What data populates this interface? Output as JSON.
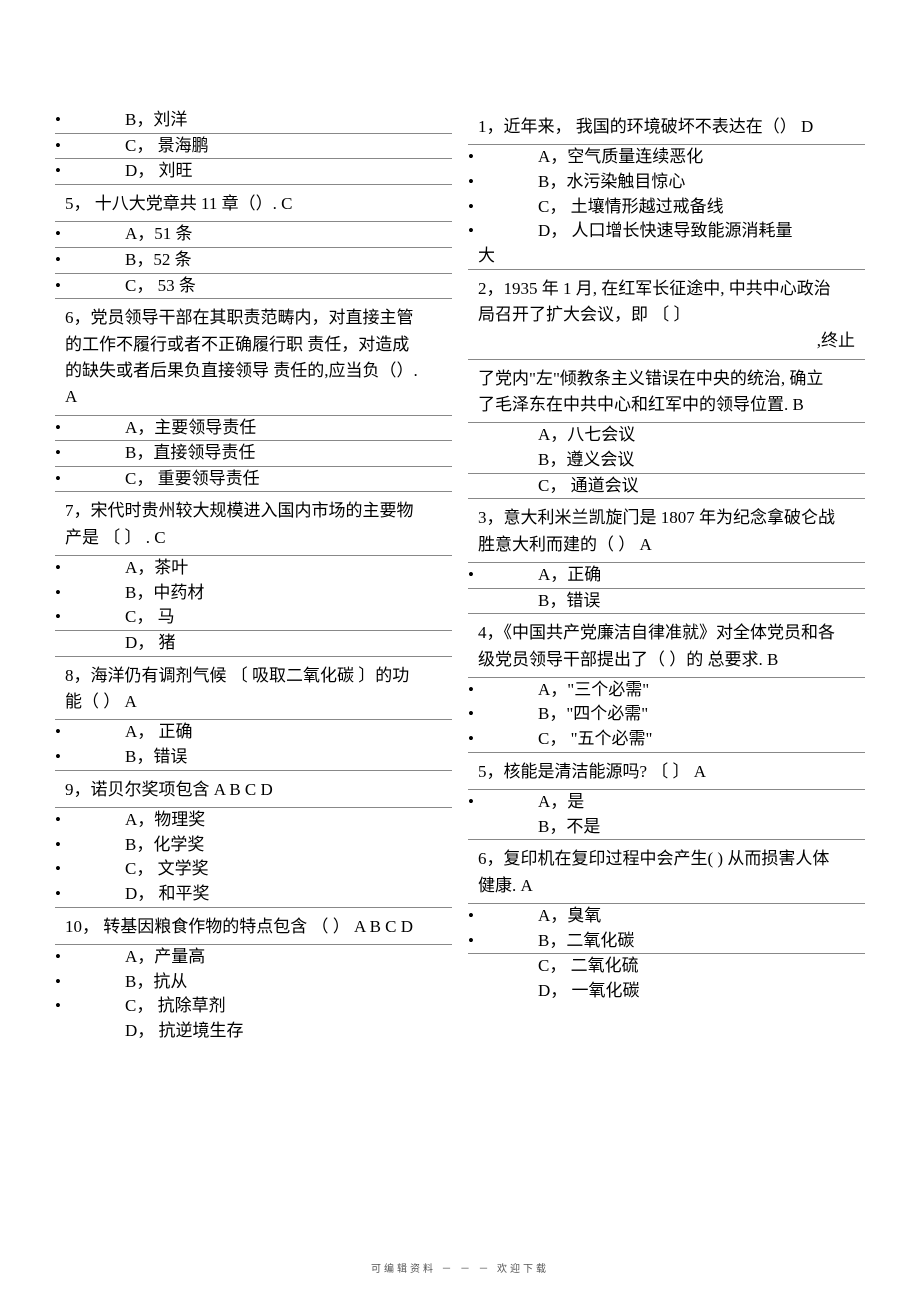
{
  "footer": "可编辑资料   －  －  －  欢迎下载",
  "left": {
    "pre_opts": [
      "B，刘洋",
      "C， 景海鹏",
      "D， 刘旺"
    ],
    "q5": {
      "text": "5，  十八大党章共   11 章（）.      C",
      "opts": [
        "A，51 条",
        "B，52 条",
        "C， 53 条"
      ]
    },
    "q6": {
      "text": "6，党员领导干部在其职责范畴内，对直接主管的工作不履行或者不正确履行职  责任，对造成的缺失或者后果负直接领导  责任的,应当负（）.              A",
      "opts": [
        "A，主要领导责任",
        "B，直接领导责任",
        "C， 重要领导责任"
      ]
    },
    "q7": {
      "text": "7，宋代时贵州较大规模进入国内市场的主要物产是 〔  〕   . C",
      "opts": [
        "A，茶叶",
        "B，中药材",
        "C， 马",
        "D， 猪"
      ]
    },
    "q8": {
      "text": "8，海洋仍有调剂气候 〔 吸取二氧化碳  〕的功能（    ）    A",
      "opts": [
        "A，  正确",
        "B，错误"
      ]
    },
    "q9": {
      "text": "9，诺贝尔奖项包含      A B C D",
      "opts": [
        "A，物理奖",
        "B，化学奖",
        "C， 文学奖",
        "D， 和平奖"
      ]
    },
    "q10": {
      "text": "10， 转基因粮食作物的特点包含  （  ）   A B C D",
      "opts": [
        "A，产量高",
        "B，抗从",
        "C， 抗除草剂",
        "D， 抗逆境生存"
      ]
    }
  },
  "right": {
    "q1": {
      "text": "1，近年来，    我国的环境破坏不表达在（）      D",
      "opts": [
        "A，空气质量连续恶化",
        "B，水污染触目惊心",
        "C， 土壤情形越过戒备线",
        "D， 人口增长快速导致能源消耗量"
      ],
      "cont": "大"
    },
    "q2": {
      "text": "2，1935  年  1  月, 在红军长征途中, 中共中心政治局召开了扩大会议，即           〔   〕",
      "text2": ",终止",
      "text3": "了党内\"左\"倾教条主义错误在中央的统治, 确立了毛泽东在中共中心和红军中的领导位置.       B",
      "opts": [
        "A，八七会议",
        "B，遵义会议",
        "C， 通道会议"
      ]
    },
    "q3": {
      "text": "3，意大利米兰凯旋门是   1807 年为纪念拿破仑战胜意大利而建的（       ）   A",
      "opts": [
        "A，正确",
        "B，错误"
      ]
    },
    "q4": {
      "text": "4，《中国共产党廉洁自律准就》对全体党员和各级党员领导干部提出了（ ）的 总要求. B",
      "opts": [
        "A，\"三个必需\"",
        "B，\"四个必需\"",
        "C， \"五个必需\""
      ]
    },
    "q5": {
      "text": "5，核能是清洁能源吗?     〔    〕   A",
      "opts": [
        "A，是",
        "B，不是"
      ]
    },
    "q6": {
      "text": "6，复印机在复印过程中会产生(        ) 从而损害人体健康.       A",
      "opts": [
        "A，臭氧",
        "B，二氧化碳",
        "C， 二氧化硫",
        "D， 一氧化碳"
      ]
    }
  }
}
